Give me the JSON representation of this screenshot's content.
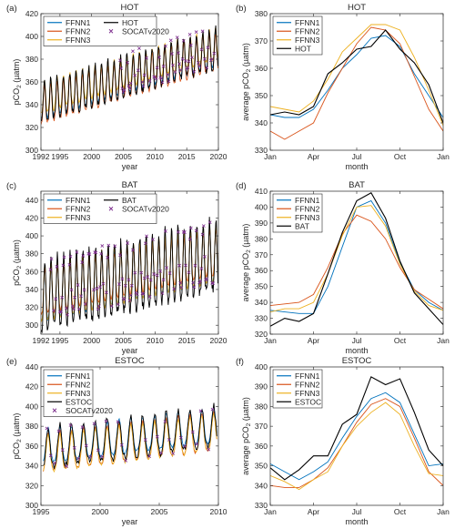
{
  "colors": {
    "FFNN1": "#0072bd",
    "FFNN2": "#d95319",
    "FFNN3": "#edb120",
    "station": "#000000",
    "SOCAT": "#7e2f8e"
  },
  "chart_data": [
    {
      "id": "a",
      "panel_label": "(a)",
      "type": "line",
      "title": "HOT",
      "xlabel": "year",
      "ylabel": "pCO2 (µatm)",
      "xlim": [
        1992,
        2020
      ],
      "ylim": [
        300,
        420
      ],
      "xticks": [
        1992,
        1995,
        2000,
        2005,
        2010,
        2015,
        2020
      ],
      "yticks": [
        300,
        320,
        340,
        360,
        380,
        400,
        420
      ],
      "legend": {
        "placement": "top-left",
        "columns": 2,
        "entries": [
          "FFNN1",
          "HOT",
          "FFNN2",
          "SOCATv2020",
          "FFNN3"
        ]
      },
      "series_model": {
        "start": 1992.0,
        "end": 2019.9,
        "base0": 340,
        "trend": 1.7,
        "amp": 18,
        "phase": 0.55
      },
      "series": [
        {
          "name": "FFNN1",
          "kind": "line",
          "offset": 0,
          "ampScale": 1.0
        },
        {
          "name": "FFNN2",
          "kind": "line",
          "offset": -3,
          "ampScale": 1.1
        },
        {
          "name": "FFNN3",
          "kind": "line",
          "offset": 4,
          "ampScale": 0.9
        },
        {
          "name": "HOT",
          "kind": "line",
          "offset": 0,
          "ampScale": 1.15,
          "noise": 3
        },
        {
          "name": "SOCATv2020",
          "kind": "marker",
          "start": 2004.0,
          "end": 2019.5,
          "offset": 2,
          "ampScale": 1.0
        }
      ]
    },
    {
      "id": "b",
      "panel_label": "(b)",
      "type": "line",
      "title": "HOT",
      "xlabel": "month",
      "ylabel": "average pCO2 (µatm)",
      "xlim": [
        1,
        13
      ],
      "ylim": [
        330,
        380
      ],
      "xticks": [
        1,
        4,
        7,
        10,
        13
      ],
      "xticklabels": [
        "Jan",
        "Apr",
        "Jul",
        "Oct",
        "Jan"
      ],
      "yticks": [
        330,
        340,
        350,
        360,
        370,
        380
      ],
      "legend": {
        "placement": "top-left",
        "columns": 1,
        "entries": [
          "FFNN1",
          "FFNN2",
          "FFNN3",
          "HOT"
        ]
      },
      "x": [
        1,
        2,
        3,
        4,
        5,
        6,
        7,
        8,
        9,
        10,
        11,
        12,
        13
      ],
      "series": [
        {
          "name": "FFNN1",
          "values": [
            343,
            342,
            342,
            345,
            352,
            360,
            365,
            371,
            372,
            368,
            358,
            350,
            342
          ]
        },
        {
          "name": "FFNN2",
          "values": [
            337,
            334,
            337,
            340,
            351,
            360,
            369,
            375,
            374,
            369,
            357,
            345,
            337
          ]
        },
        {
          "name": "FFNN3",
          "values": [
            346,
            345,
            344,
            348,
            356,
            366,
            371,
            376,
            376,
            374,
            364,
            352,
            339
          ]
        },
        {
          "name": "HOT",
          "values": [
            343,
            344,
            343,
            346,
            358,
            362,
            367,
            368,
            374,
            367,
            362,
            354,
            340
          ]
        }
      ]
    },
    {
      "id": "c",
      "panel_label": "(c)",
      "type": "line",
      "title": "BAT",
      "xlabel": "year",
      "ylabel": "pCO2 (µatm)",
      "xlim": [
        1992,
        2020
      ],
      "ylim": [
        290,
        450
      ],
      "xticks": [
        1992,
        1995,
        2000,
        2005,
        2010,
        2015,
        2020
      ],
      "yticks": [
        300,
        320,
        340,
        360,
        380,
        400,
        420,
        440
      ],
      "legend": {
        "placement": "top-left",
        "columns": 2,
        "entries": [
          "FFNN1",
          "BAT",
          "FFNN2",
          "SOCATv2020",
          "FFNN3"
        ]
      },
      "series_model": {
        "start": 1992.0,
        "end": 2019.9,
        "base0": 330,
        "trend": 1.6,
        "amp": 40,
        "phase": 0.6
      },
      "series": [
        {
          "name": "FFNN1",
          "kind": "line",
          "offset": 0,
          "ampScale": 0.9
        },
        {
          "name": "FFNN2",
          "kind": "line",
          "offset": 3,
          "ampScale": 0.75
        },
        {
          "name": "FFNN3",
          "kind": "line",
          "offset": 1,
          "ampScale": 0.95
        },
        {
          "name": "BAT",
          "kind": "line",
          "offset": -2,
          "ampScale": 1.15,
          "noise": 6
        },
        {
          "name": "SOCATv2020",
          "kind": "marker",
          "start": 1993.5,
          "end": 2019.5,
          "offset": 4,
          "ampScale": 1.0
        }
      ]
    },
    {
      "id": "d",
      "panel_label": "(d)",
      "type": "line",
      "title": "BAT",
      "xlabel": "month",
      "ylabel": "average pCO2 (µatm)",
      "xlim": [
        1,
        13
      ],
      "ylim": [
        320,
        410
      ],
      "xticks": [
        1,
        4,
        7,
        10,
        13
      ],
      "xticklabels": [
        "Jan",
        "Apr",
        "Jul",
        "Oct",
        "Jan"
      ],
      "yticks": [
        320,
        330,
        340,
        350,
        360,
        370,
        380,
        390,
        400,
        410
      ],
      "legend": {
        "placement": "top-left",
        "columns": 1,
        "entries": [
          "FFNN1",
          "FFNN2",
          "FFNN3",
          "BAT"
        ]
      },
      "x": [
        1,
        2,
        3,
        4,
        5,
        6,
        7,
        8,
        9,
        10,
        11,
        12,
        13
      ],
      "series": [
        {
          "name": "FFNN1",
          "values": [
            335,
            334,
            333,
            333,
            350,
            375,
            400,
            404,
            390,
            365,
            348,
            340,
            335
          ]
        },
        {
          "name": "FFNN2",
          "values": [
            338,
            339,
            340,
            345,
            362,
            383,
            395,
            391,
            380,
            362,
            348,
            342,
            336
          ]
        },
        {
          "name": "FFNN3",
          "values": [
            334,
            336,
            336,
            340,
            358,
            382,
            400,
            401,
            388,
            364,
            347,
            338,
            335
          ]
        },
        {
          "name": "BAT",
          "values": [
            325,
            330,
            328,
            333,
            358,
            384,
            404,
            409,
            393,
            366,
            346,
            336,
            326
          ]
        }
      ]
    },
    {
      "id": "e",
      "panel_label": "(e)",
      "type": "line",
      "title": "ESTOC",
      "xlabel": "year",
      "ylabel": "pCO2 (µatm)",
      "xlim": [
        1995,
        2010
      ],
      "ylim": [
        300,
        440
      ],
      "xticks": [
        1995,
        2000,
        2005,
        2010
      ],
      "yticks": [
        300,
        320,
        340,
        360,
        380,
        400,
        420,
        440
      ],
      "legend": {
        "placement": "top-left",
        "columns": 1,
        "entries": [
          "FFNN1",
          "FFNN2",
          "FFNN3",
          "ESTOC",
          "SOCATv2020"
        ]
      },
      "series_model": {
        "start": 1995.2,
        "end": 2009.9,
        "base0": 355,
        "trend": 1.5,
        "amp": 24,
        "phase": 0.6
      },
      "series": [
        {
          "name": "FFNN1",
          "kind": "line",
          "offset": 2,
          "ampScale": 0.85
        },
        {
          "name": "FFNN2",
          "kind": "line",
          "offset": -5,
          "ampScale": 0.95
        },
        {
          "name": "FFNN3",
          "kind": "line",
          "offset": -6,
          "ampScale": 0.9
        },
        {
          "name": "ESTOC",
          "kind": "line",
          "offset": 0,
          "ampScale": 1.0,
          "noise": 4
        },
        {
          "name": "SOCATv2020",
          "kind": "marker",
          "start": 1995.5,
          "end": 2009.5,
          "offset": 0,
          "ampScale": 1.0,
          "sparse": true
        }
      ]
    },
    {
      "id": "f",
      "panel_label": "(f)",
      "type": "line",
      "title": "ESTOC",
      "xlabel": "month",
      "ylabel": "average pCO2 (µatm)",
      "xlim": [
        1,
        13
      ],
      "ylim": [
        330,
        400
      ],
      "xticks": [
        1,
        4,
        7,
        10,
        13
      ],
      "xticklabels": [
        "Jan",
        "Apr",
        "Jul",
        "Oct",
        "Jan"
      ],
      "yticks": [
        330,
        340,
        350,
        360,
        370,
        380,
        390,
        400
      ],
      "legend": {
        "placement": "top-left",
        "columns": 1,
        "entries": [
          "FFNN1",
          "FFNN2",
          "FFNN3",
          "ESTOC"
        ]
      },
      "x": [
        1,
        2,
        3,
        4,
        5,
        6,
        7,
        8,
        9,
        10,
        11,
        12,
        13
      ],
      "series": [
        {
          "name": "FFNN1",
          "values": [
            351,
            347,
            343,
            347,
            352,
            364,
            375,
            384,
            387,
            382,
            366,
            350,
            351
          ]
        },
        {
          "name": "FFNN2",
          "values": [
            340,
            339,
            339,
            343,
            349,
            360,
            372,
            381,
            384,
            380,
            364,
            347,
            340
          ]
        },
        {
          "name": "FFNN3",
          "values": [
            345,
            342,
            338,
            343,
            347,
            360,
            370,
            377,
            382,
            376,
            360,
            346,
            345
          ]
        },
        {
          "name": "ESTOC",
          "values": [
            349,
            343,
            348,
            355,
            355,
            371,
            376,
            395,
            391,
            394,
            377,
            358,
            350
          ]
        }
      ]
    }
  ]
}
